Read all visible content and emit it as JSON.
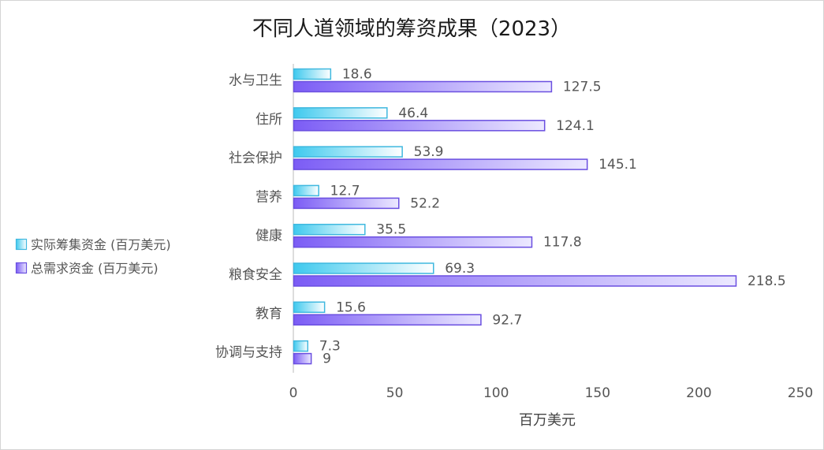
{
  "chart_data": {
    "type": "bar",
    "orientation": "horizontal",
    "title": "不同人道领域的筹资成果（2023）",
    "xlabel": "百万美元",
    "ylabel": "",
    "categories": [
      "水与卫生",
      "住所",
      "社会保护",
      "营养",
      "健康",
      "粮食安全",
      "教育",
      "协调与支持"
    ],
    "series": [
      {
        "name": "实际筹集资金 (百万美元)",
        "color_start": "#3ec9ee",
        "color_end": "#ffffff",
        "stroke": "#3fb8df",
        "values": [
          18.6,
          46.4,
          53.9,
          12.7,
          35.5,
          69.3,
          15.6,
          7.3
        ]
      },
      {
        "name": "总需求资金 (百万美元)",
        "color_start": "#7b5cf5",
        "color_end": "#ece9ff",
        "stroke": "#6a4fe0",
        "values": [
          127.5,
          124.1,
          145.1,
          52.2,
          117.8,
          218.5,
          92.7,
          9
        ]
      }
    ],
    "xlim": [
      0,
      250
    ],
    "xticks": [
      0,
      50,
      100,
      150,
      200,
      250
    ],
    "grid": false,
    "legend_position": "left"
  }
}
